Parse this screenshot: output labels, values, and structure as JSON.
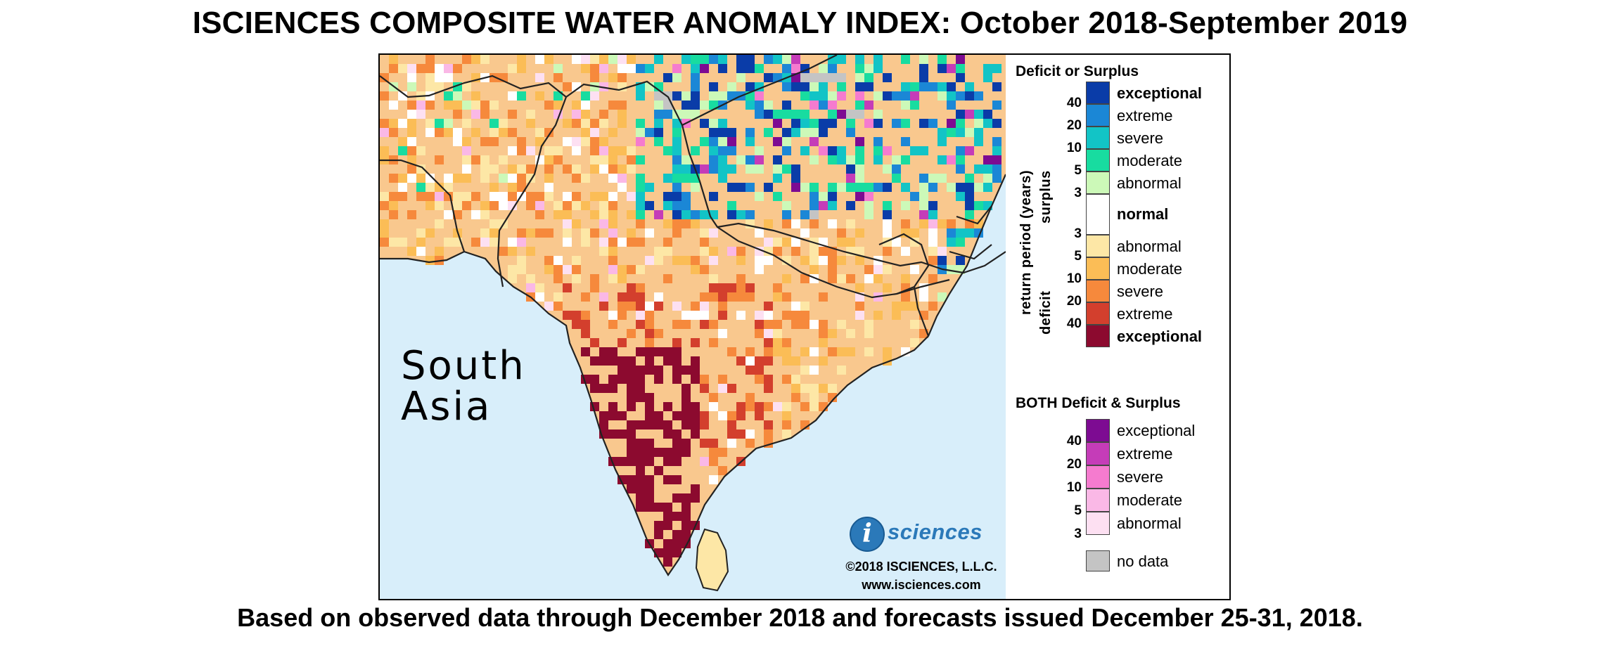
{
  "title": "ISCIENCES COMPOSITE WATER ANOMALY INDEX: October 2018-September 2019",
  "footer": "Based on observed data through December 2018 and forecasts issued December 25-31, 2018.",
  "map": {
    "region_label_line1": "South",
    "region_label_line2": "Asia",
    "logo_mark": "i",
    "logo_word": "sciences",
    "copyright": "©2018 ISCIENCES, L.L.C.",
    "website": "www.isciences.com"
  },
  "legend": {
    "heading_main": "Deficit or Surplus",
    "axis_label": "return period (years)",
    "surplus_label": "surplus",
    "deficit_label": "deficit",
    "surplus": [
      {
        "label": "exceptional",
        "color": "#0a3ca8",
        "bold": true
      },
      {
        "label": "extreme",
        "color": "#1b87d6",
        "bold": false
      },
      {
        "label": "severe",
        "color": "#12c4c6",
        "bold": false
      },
      {
        "label": "moderate",
        "color": "#18dca0",
        "bold": false
      },
      {
        "label": "abnormal",
        "color": "#ccf9b8",
        "bold": false
      }
    ],
    "surplus_ticks": [
      "40",
      "20",
      "10",
      "5",
      "3"
    ],
    "normal": {
      "label": "normal",
      "color": "#ffffff"
    },
    "deficit": [
      {
        "label": "abnormal",
        "color": "#fde7a6",
        "bold": false
      },
      {
        "label": "moderate",
        "color": "#fbbd56",
        "bold": false
      },
      {
        "label": "severe",
        "color": "#f6893c",
        "bold": false
      },
      {
        "label": "extreme",
        "color": "#d33f2d",
        "bold": false
      },
      {
        "label": "exceptional",
        "color": "#8c0a2f",
        "bold": true
      }
    ],
    "deficit_ticks": [
      "3",
      "5",
      "10",
      "20",
      "40"
    ],
    "heading_both": "BOTH Deficit & Surplus",
    "both": [
      {
        "label": "exceptional",
        "color": "#7d0b92"
      },
      {
        "label": "extreme",
        "color": "#c53cb8"
      },
      {
        "label": "severe",
        "color": "#f57bcf"
      },
      {
        "label": "moderate",
        "color": "#fab8e6"
      },
      {
        "label": "abnormal",
        "color": "#fde0f2"
      }
    ],
    "both_ticks": [
      "40",
      "20",
      "10",
      "5",
      "3"
    ],
    "nodata": {
      "label": "no data",
      "color": "#c4c4c4"
    }
  }
}
